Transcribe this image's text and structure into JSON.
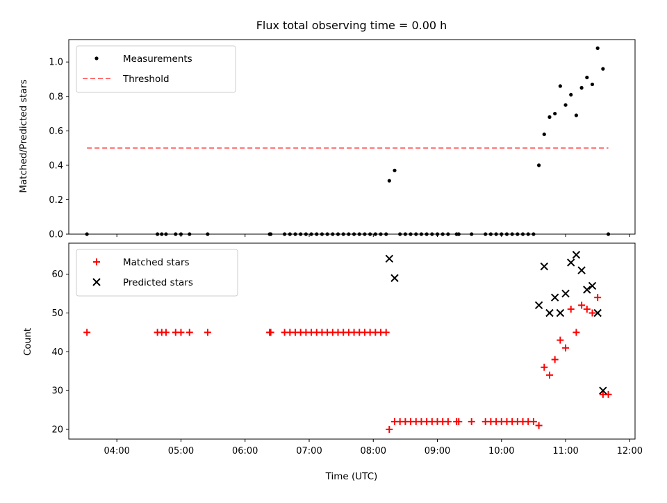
{
  "chart_data": [
    {
      "type": "scatter",
      "title": "Flux total observing time = 0.00 h",
      "xlabel": "",
      "ylabel": "Matched/Predicted stars",
      "xlim": [
        "03:15",
        "12:05"
      ],
      "ylim": [
        0,
        1.13
      ],
      "yticks": [
        0.0,
        0.2,
        0.4,
        0.6,
        0.8,
        1.0
      ],
      "ytick_labels": [
        "0.0",
        "0.2",
        "0.4",
        "0.6",
        "0.8",
        "1.0"
      ],
      "legend_position": "upper-left",
      "series": [
        {
          "name": "Measurements",
          "marker": "dot",
          "color": "#000000",
          "points": [
            [
              "03:32",
              0
            ],
            [
              "04:38",
              0
            ],
            [
              "04:42",
              0
            ],
            [
              "04:46",
              0
            ],
            [
              "04:55",
              0
            ],
            [
              "05:00",
              0
            ],
            [
              "05:08",
              0
            ],
            [
              "05:25",
              0
            ],
            [
              "06:23",
              0
            ],
            [
              "06:24",
              0
            ],
            [
              "06:37",
              0
            ],
            [
              "06:42",
              0
            ],
            [
              "06:47",
              0
            ],
            [
              "06:52",
              0
            ],
            [
              "06:57",
              0
            ],
            [
              "07:02",
              0
            ],
            [
              "07:07",
              0
            ],
            [
              "07:12",
              0
            ],
            [
              "07:17",
              0
            ],
            [
              "07:22",
              0
            ],
            [
              "07:27",
              0
            ],
            [
              "07:32",
              0
            ],
            [
              "07:37",
              0
            ],
            [
              "07:42",
              0
            ],
            [
              "07:47",
              0
            ],
            [
              "07:52",
              0
            ],
            [
              "07:57",
              0
            ],
            [
              "08:02",
              0
            ],
            [
              "08:07",
              0
            ],
            [
              "08:12",
              0
            ],
            [
              "08:15",
              0.31
            ],
            [
              "08:20",
              0.37
            ],
            [
              "08:25",
              0
            ],
            [
              "08:30",
              0
            ],
            [
              "08:35",
              0
            ],
            [
              "08:40",
              0
            ],
            [
              "08:45",
              0
            ],
            [
              "08:50",
              0
            ],
            [
              "08:55",
              0
            ],
            [
              "09:00",
              0
            ],
            [
              "09:05",
              0
            ],
            [
              "09:10",
              0
            ],
            [
              "09:18",
              0
            ],
            [
              "09:20",
              0
            ],
            [
              "09:32",
              0
            ],
            [
              "09:45",
              0
            ],
            [
              "09:50",
              0
            ],
            [
              "09:55",
              0
            ],
            [
              "10:00",
              0
            ],
            [
              "10:05",
              0
            ],
            [
              "10:10",
              0
            ],
            [
              "10:15",
              0
            ],
            [
              "10:20",
              0
            ],
            [
              "10:25",
              0
            ],
            [
              "10:30",
              0
            ],
            [
              "10:35",
              0.4
            ],
            [
              "10:40",
              0.58
            ],
            [
              "10:45",
              0.68
            ],
            [
              "10:50",
              0.7
            ],
            [
              "10:55",
              0.86
            ],
            [
              "11:00",
              0.75
            ],
            [
              "11:05",
              0.81
            ],
            [
              "11:10",
              0.69
            ],
            [
              "11:15",
              0.85
            ],
            [
              "11:20",
              0.91
            ],
            [
              "11:25",
              0.87
            ],
            [
              "11:30",
              1.08
            ],
            [
              "11:35",
              0.96
            ],
            [
              "11:40",
              0
            ]
          ]
        },
        {
          "name": "Threshold",
          "marker": "dashed-line",
          "color": "#ff7070",
          "points": [
            [
              "03:32",
              0.5
            ],
            [
              "11:40",
              0.5
            ]
          ]
        }
      ]
    },
    {
      "type": "scatter",
      "title": "",
      "xlabel": "Time (UTC)",
      "ylabel": "Count",
      "xlim": [
        "03:15",
        "12:05"
      ],
      "ylim": [
        17.5,
        68
      ],
      "yticks": [
        20,
        30,
        40,
        50,
        60
      ],
      "ytick_labels": [
        "20",
        "30",
        "40",
        "50",
        "60"
      ],
      "xticks": [
        "04:00",
        "05:00",
        "06:00",
        "07:00",
        "08:00",
        "09:00",
        "10:00",
        "11:00",
        "12:00"
      ],
      "legend_position": "upper-left",
      "series": [
        {
          "name": "Matched stars",
          "marker": "plus",
          "color": "#ff0000",
          "points": [
            [
              "03:32",
              45
            ],
            [
              "04:38",
              45
            ],
            [
              "04:42",
              45
            ],
            [
              "04:46",
              45
            ],
            [
              "04:55",
              45
            ],
            [
              "05:00",
              45
            ],
            [
              "05:08",
              45
            ],
            [
              "05:25",
              45
            ],
            [
              "06:23",
              45
            ],
            [
              "06:24",
              45
            ],
            [
              "06:37",
              45
            ],
            [
              "06:42",
              45
            ],
            [
              "06:47",
              45
            ],
            [
              "06:52",
              45
            ],
            [
              "06:57",
              45
            ],
            [
              "07:02",
              45
            ],
            [
              "07:07",
              45
            ],
            [
              "07:12",
              45
            ],
            [
              "07:17",
              45
            ],
            [
              "07:22",
              45
            ],
            [
              "07:27",
              45
            ],
            [
              "07:32",
              45
            ],
            [
              "07:37",
              45
            ],
            [
              "07:42",
              45
            ],
            [
              "07:47",
              45
            ],
            [
              "07:52",
              45
            ],
            [
              "07:57",
              45
            ],
            [
              "08:02",
              45
            ],
            [
              "08:07",
              45
            ],
            [
              "08:12",
              45
            ],
            [
              "08:15",
              20
            ],
            [
              "08:20",
              22
            ],
            [
              "08:25",
              22
            ],
            [
              "08:30",
              22
            ],
            [
              "08:35",
              22
            ],
            [
              "08:40",
              22
            ],
            [
              "08:45",
              22
            ],
            [
              "08:50",
              22
            ],
            [
              "08:55",
              22
            ],
            [
              "09:00",
              22
            ],
            [
              "09:05",
              22
            ],
            [
              "09:10",
              22
            ],
            [
              "09:18",
              22
            ],
            [
              "09:20",
              22
            ],
            [
              "09:32",
              22
            ],
            [
              "09:45",
              22
            ],
            [
              "09:50",
              22
            ],
            [
              "09:55",
              22
            ],
            [
              "10:00",
              22
            ],
            [
              "10:05",
              22
            ],
            [
              "10:10",
              22
            ],
            [
              "10:15",
              22
            ],
            [
              "10:20",
              22
            ],
            [
              "10:25",
              22
            ],
            [
              "10:30",
              22
            ],
            [
              "10:35",
              21
            ],
            [
              "10:40",
              36
            ],
            [
              "10:45",
              34
            ],
            [
              "10:50",
              38
            ],
            [
              "10:55",
              43
            ],
            [
              "11:00",
              41
            ],
            [
              "11:05",
              51
            ],
            [
              "11:10",
              45
            ],
            [
              "11:15",
              52
            ],
            [
              "11:20",
              51
            ],
            [
              "11:25",
              50
            ],
            [
              "11:30",
              54
            ],
            [
              "11:35",
              29
            ],
            [
              "11:40",
              29
            ]
          ]
        },
        {
          "name": "Predicted stars",
          "marker": "x",
          "color": "#000000",
          "points": [
            [
              "08:15",
              64
            ],
            [
              "08:20",
              59
            ],
            [
              "10:35",
              52
            ],
            [
              "10:40",
              62
            ],
            [
              "10:45",
              50
            ],
            [
              "10:50",
              54
            ],
            [
              "10:55",
              50
            ],
            [
              "11:00",
              55
            ],
            [
              "11:05",
              63
            ],
            [
              "11:10",
              65
            ],
            [
              "11:15",
              61
            ],
            [
              "11:20",
              56
            ],
            [
              "11:25",
              57
            ],
            [
              "11:30",
              50
            ],
            [
              "11:35",
              30
            ]
          ]
        }
      ]
    }
  ]
}
